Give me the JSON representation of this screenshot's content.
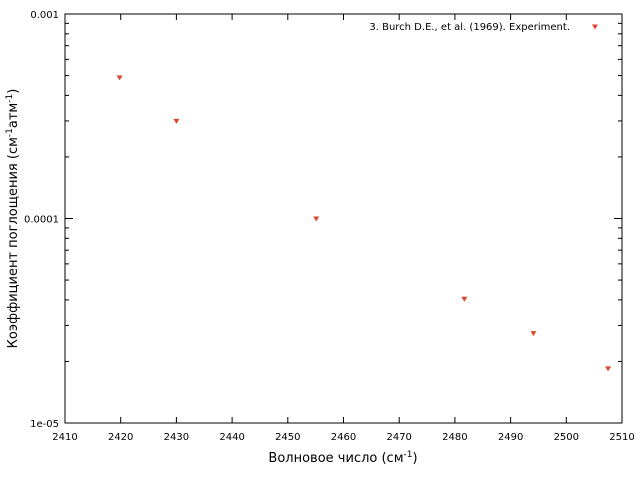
{
  "chart_data": {
    "type": "scatter",
    "xlabel_main": "Волновое число (см",
    "xlabel_sup": "-1",
    "xlabel_end": ")",
    "ylabel_main": "Коэффициент поглощения (см",
    "ylabel_sup1": "-1",
    "ylabel_mid": "атм",
    "ylabel_sup2": "-1",
    "ylabel_end": ")",
    "xlim": [
      2410,
      2510
    ],
    "ylim": [
      1e-05,
      0.001
    ],
    "yscale": "log",
    "x_ticks": [
      2410,
      2420,
      2430,
      2440,
      2450,
      2460,
      2470,
      2480,
      2490,
      2500,
      2510
    ],
    "x_tick_labels": [
      "2410",
      "2420",
      "2430",
      "2440",
      "2450",
      "2460",
      "2470",
      "2480",
      "2490",
      "2500",
      "2510"
    ],
    "y_ticks": [
      1e-05,
      0.0001,
      0.001
    ],
    "y_tick_labels": [
      "1e-05",
      "0.0001",
      "0.001"
    ],
    "grid": false,
    "legend_position": "top-right",
    "marker_color": "#e0442c",
    "series": [
      {
        "name": "3. Burch D.E., et al. (1969). Experiment.",
        "marker": "triangle-down",
        "x": [
          2419.8,
          2430.0,
          2455.1,
          2481.7,
          2494.1,
          2507.5
        ],
        "y": [
          0.00049,
          0.0003,
          0.0001,
          4.05e-05,
          2.75e-05,
          1.85e-05
        ]
      }
    ]
  }
}
